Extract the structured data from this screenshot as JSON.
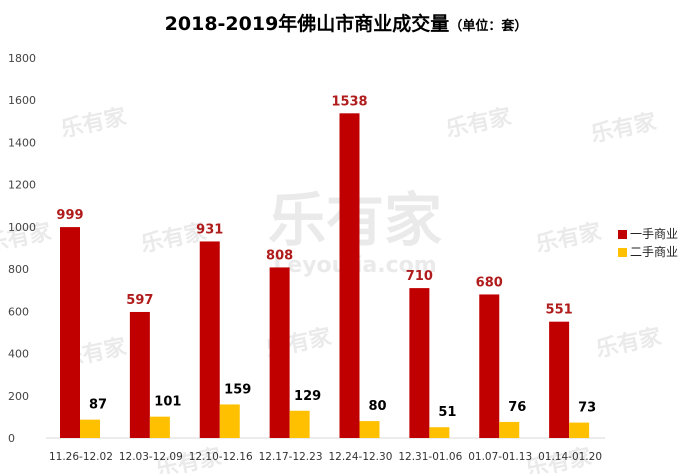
{
  "chart_data": {
    "type": "bar",
    "title": "2018-2019年佛山市商业成交量",
    "unit": "（单位：套）",
    "categories": [
      "11.26-12.02",
      "12.03-12.09",
      "12.10-12.16",
      "12.17-12.23",
      "12.24-12.30",
      "12.31-01.06",
      "01.07-01.13",
      "01.14-01.20"
    ],
    "series": [
      {
        "name": "一手商业",
        "values": [
          999,
          597,
          931,
          808,
          1538,
          710,
          680,
          551
        ],
        "color": "#c00000"
      },
      {
        "name": "二手商业",
        "values": [
          87,
          101,
          159,
          129,
          80,
          51,
          76,
          73
        ],
        "color": "#ffc000"
      }
    ],
    "yticks": [
      0,
      200,
      400,
      600,
      800,
      1000,
      1200,
      1400,
      1600,
      1800
    ],
    "ylim": [
      0,
      1800
    ],
    "grid": false,
    "legend": "right",
    "watermark": "乐有家",
    "watermark_sub": "Leyoujia.com"
  }
}
